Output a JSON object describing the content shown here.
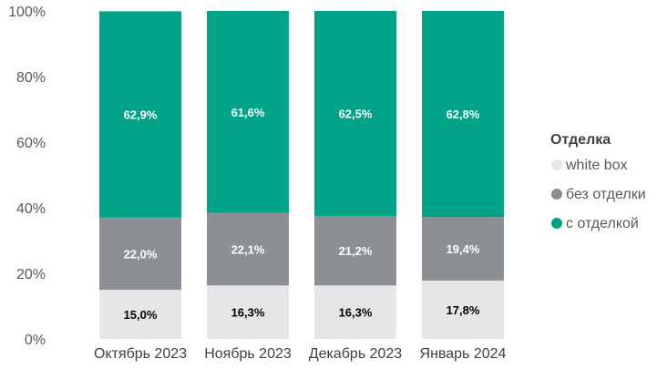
{
  "chart_data": {
    "type": "bar",
    "stacked": true,
    "percent": true,
    "categories": [
      "Октябрь 2023",
      "Ноябрь 2023",
      "Декабрь 2023",
      "Январь 2024"
    ],
    "series": [
      {
        "name": "white box",
        "color": "#e6e6e6",
        "label_color": "#000000",
        "values": [
          15.0,
          16.3,
          16.3,
          17.8
        ],
        "labels": [
          "15,0%",
          "16,3%",
          "16,3%",
          "17,8%"
        ]
      },
      {
        "name": "без отделки",
        "color": "#8c8f93",
        "label_color": "#ffffff",
        "values": [
          22.0,
          22.1,
          21.2,
          19.4
        ],
        "labels": [
          "22,0%",
          "22,1%",
          "21,2%",
          "19,4%"
        ]
      },
      {
        "name": "с отделкой",
        "color": "#00a387",
        "label_color": "#ffffff",
        "values": [
          62.9,
          61.6,
          62.5,
          62.8
        ],
        "labels": [
          "62,9%",
          "61,6%",
          "62,5%",
          "62,8%"
        ]
      }
    ],
    "ylim": [
      0,
      100
    ],
    "yticks": [
      0,
      20,
      40,
      60,
      80,
      100
    ],
    "ytick_labels": [
      "0%",
      "20%",
      "40%",
      "60%",
      "80%",
      "100%"
    ],
    "grid": false,
    "legend": {
      "title": "Отделка",
      "placement": "right",
      "order": [
        "white box",
        "без отделки",
        "с отделкой"
      ]
    }
  }
}
